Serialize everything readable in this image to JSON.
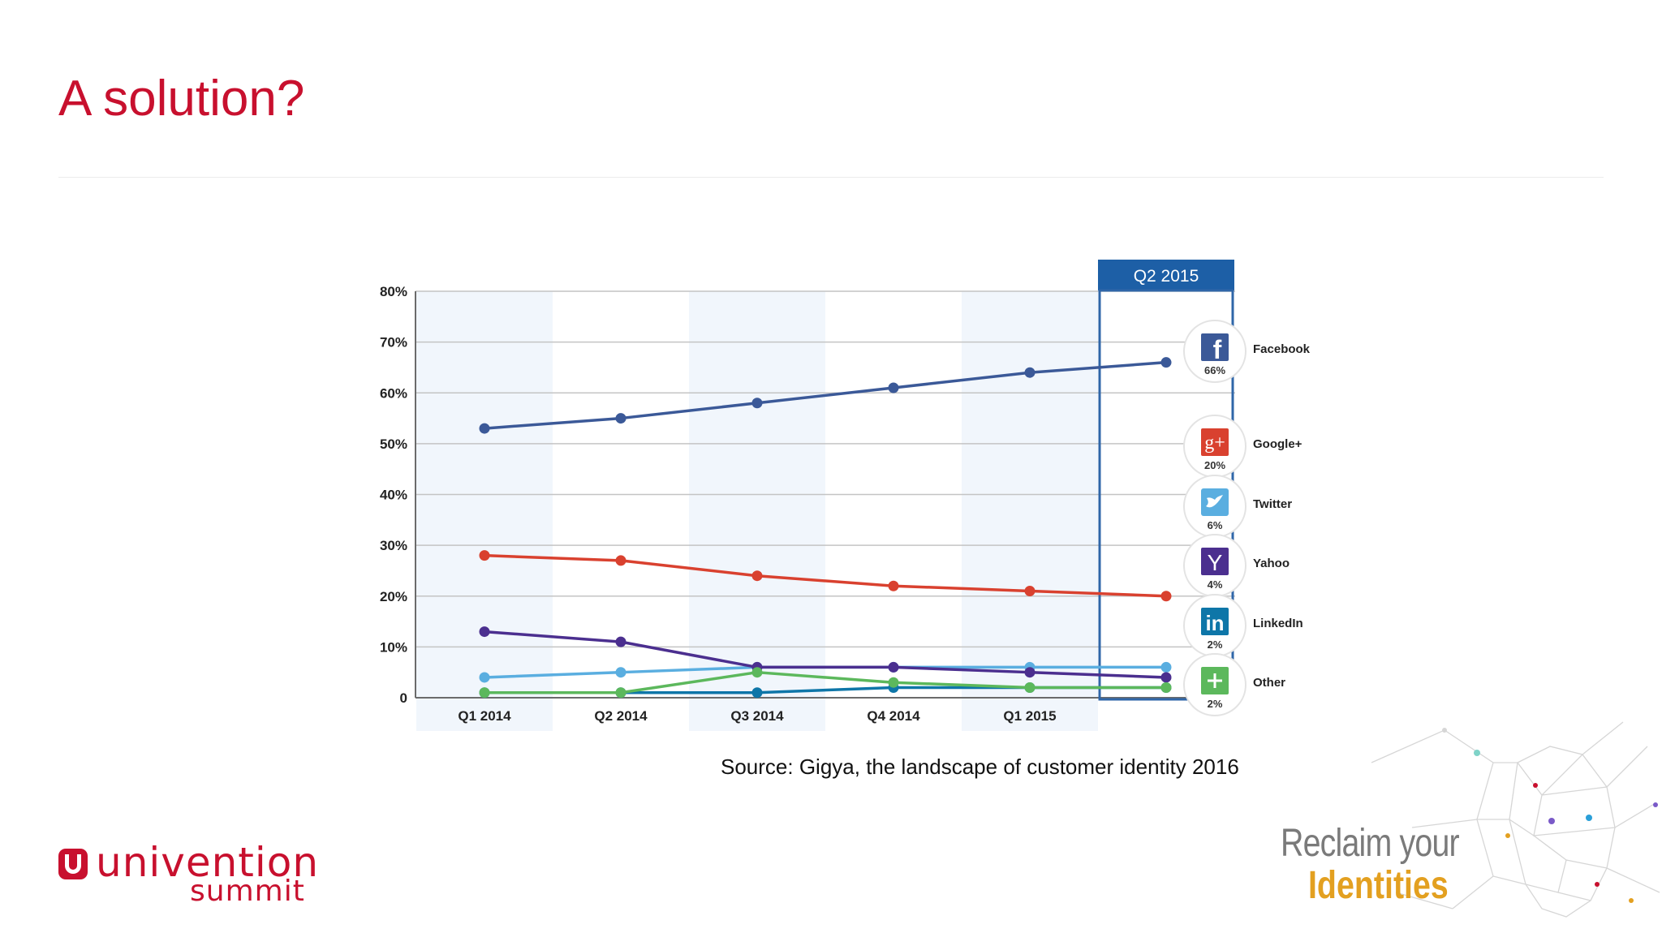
{
  "slide": {
    "title": "A solution?",
    "source": "Source: Gigya, the landscape of customer identity 2016"
  },
  "branding": {
    "logo_line1": "univention",
    "logo_line2": "summit",
    "tagline_line1": "Reclaim your",
    "tagline_line2": "Identities",
    "accent_color": "#c8102e",
    "tagline_color": "#e3a020"
  },
  "chart_data": {
    "type": "line",
    "title": "",
    "xlabel": "",
    "ylabel": "",
    "categories": [
      "Q1 2014",
      "Q2 2014",
      "Q3 2014",
      "Q4 2014",
      "Q1 2015",
      "Q2 2015"
    ],
    "ylim": [
      0,
      80
    ],
    "yticks": [
      0,
      10,
      20,
      30,
      40,
      50,
      60,
      70,
      80
    ],
    "ytick_labels": [
      "0",
      "10%",
      "20%",
      "30%",
      "40%",
      "50%",
      "60%",
      "70%",
      "80%"
    ],
    "grid": true,
    "highlight": {
      "category": "Q2 2015",
      "label": "Q2 2015"
    },
    "legend_position": "right",
    "series": [
      {
        "name": "Facebook",
        "share_label": "66%",
        "icon": "facebook-icon",
        "color": "#3b5998",
        "values": [
          53,
          55,
          58,
          61,
          64,
          66
        ]
      },
      {
        "name": "Google+",
        "share_label": "20%",
        "icon": "google-plus-icon",
        "color": "#d9412f",
        "values": [
          28,
          27,
          24,
          22,
          21,
          20
        ]
      },
      {
        "name": "Twitter",
        "share_label": "6%",
        "icon": "twitter-icon",
        "color": "#5aaee0",
        "values": [
          4,
          5,
          6,
          6,
          6,
          6
        ]
      },
      {
        "name": "Yahoo",
        "share_label": "4%",
        "icon": "yahoo-icon",
        "color": "#4b2f8f",
        "values": [
          13,
          11,
          6,
          6,
          5,
          4
        ]
      },
      {
        "name": "LinkedIn",
        "share_label": "2%",
        "icon": "linkedin-icon",
        "color": "#0e76a8",
        "values": [
          1,
          1,
          1,
          2,
          2,
          2
        ]
      },
      {
        "name": "Other",
        "share_label": "2%",
        "icon": "plus-icon",
        "color": "#5cb85c",
        "values": [
          1,
          1,
          5,
          3,
          2,
          2
        ]
      }
    ]
  }
}
